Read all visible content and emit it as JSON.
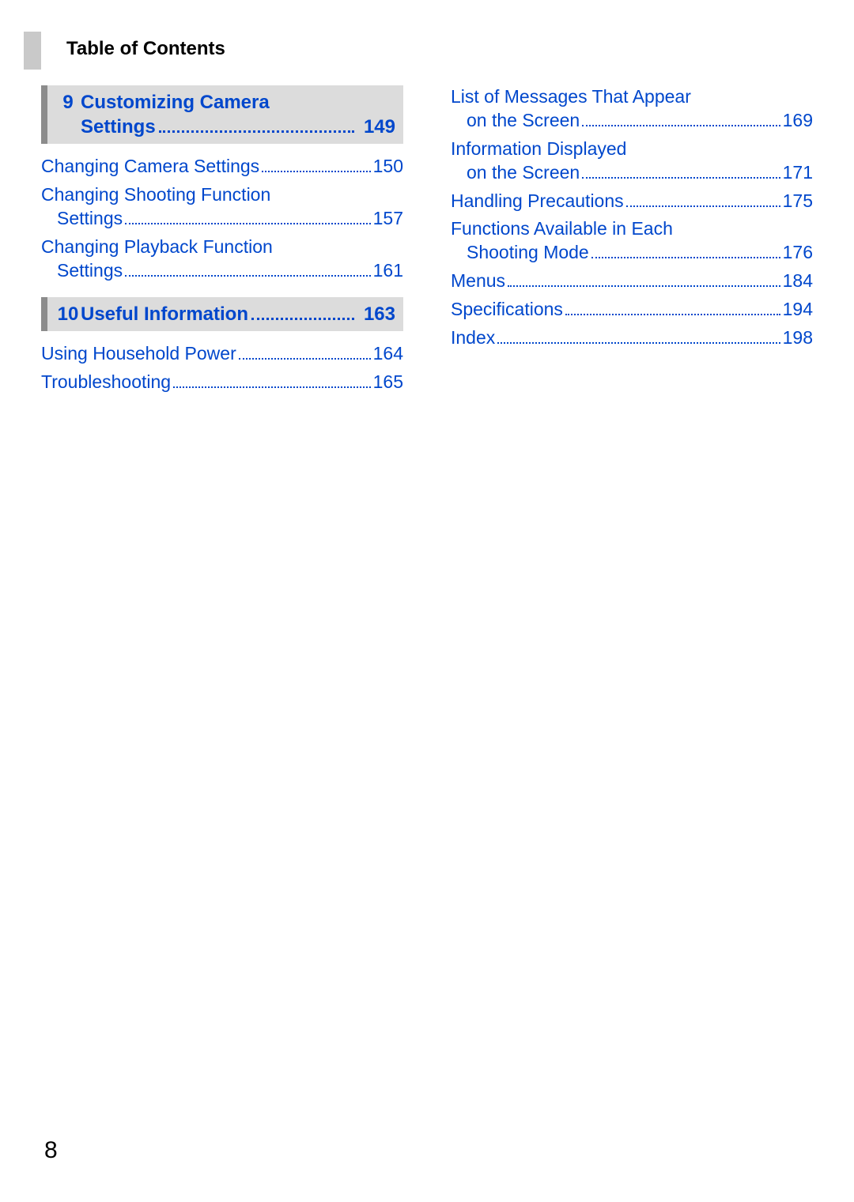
{
  "colors": {
    "link": "#0047cc",
    "section_bg": "#dcdcdc",
    "section_border": "#8c8c8c",
    "body_text": "#000000",
    "background": "#ffffff",
    "side_tab": "#c9c9c9"
  },
  "header": {
    "title": "Table of Contents"
  },
  "left": {
    "section1": {
      "number": "9",
      "title_line1": "Customizing Camera",
      "title_lastword": "Settings",
      "page": "149"
    },
    "section1_entries": [
      {
        "lines": [
          "Changing Camera Settings"
        ],
        "page": "150",
        "indent_last": false
      },
      {
        "lines": [
          "Changing Shooting Function",
          "Settings"
        ],
        "page": "157",
        "indent_last": true
      },
      {
        "lines": [
          "Changing Playback Function",
          "Settings"
        ],
        "page": "161",
        "indent_last": true
      }
    ],
    "section2": {
      "number": "10",
      "title": "Useful Information",
      "page": "163"
    },
    "section2_entries": [
      {
        "lines": [
          "Using Household Power"
        ],
        "page": "164",
        "indent_last": false
      },
      {
        "lines": [
          "Troubleshooting"
        ],
        "page": "165",
        "indent_last": false
      }
    ]
  },
  "right": {
    "entries": [
      {
        "lines": [
          "List of Messages That Appear",
          "on the Screen"
        ],
        "page": "169",
        "indent_last": true
      },
      {
        "lines": [
          "Information Displayed",
          "on the Screen"
        ],
        "page": "171",
        "indent_last": true
      },
      {
        "lines": [
          "Handling Precautions"
        ],
        "page": "175",
        "indent_last": false
      },
      {
        "lines": [
          "Functions Available in Each",
          "Shooting Mode"
        ],
        "page": "176",
        "indent_last": true
      },
      {
        "lines": [
          "Menus"
        ],
        "page": "184",
        "indent_last": false
      },
      {
        "lines": [
          "Specifications"
        ],
        "page": "194",
        "indent_last": false
      },
      {
        "lines": [
          "Index"
        ],
        "page": "198",
        "indent_last": false
      }
    ]
  },
  "footer": {
    "page_number": "8"
  }
}
